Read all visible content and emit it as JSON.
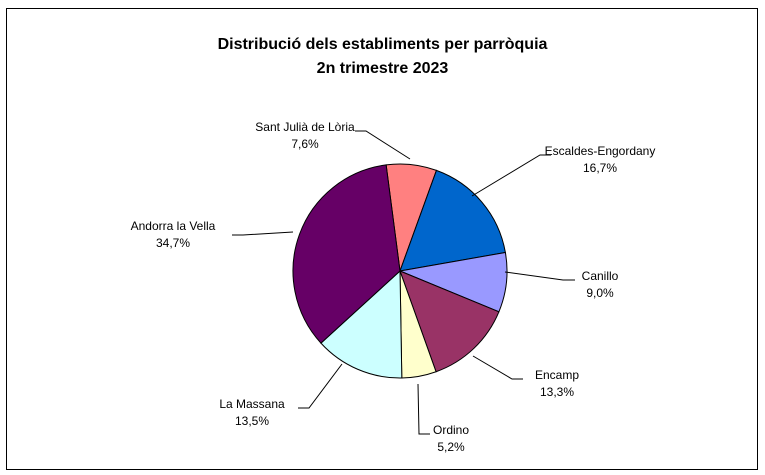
{
  "chart_data": {
    "type": "pie",
    "title": "Distribució dels establiments per parròquia",
    "subtitle": "2n trimestre 2023",
    "slices": [
      {
        "name": "Sant Julià de Lòria",
        "value": 7.6,
        "label": "7,6%",
        "color": "#ff8080"
      },
      {
        "name": "Escaldes-Engordany",
        "value": 16.7,
        "label": "16,7%",
        "color": "#0066cc"
      },
      {
        "name": "Canillo",
        "value": 9.0,
        "label": "9,0%",
        "color": "#9999ff"
      },
      {
        "name": "Encamp",
        "value": 13.3,
        "label": "13,3%",
        "color": "#993366"
      },
      {
        "name": "Ordino",
        "value": 5.2,
        "label": "5,2%",
        "color": "#ffffcc"
      },
      {
        "name": "La Massana",
        "value": 13.5,
        "label": "13,5%",
        "color": "#ccffff"
      },
      {
        "name": "Andorra la Vella",
        "value": 34.7,
        "label": "34,7%",
        "color": "#660066"
      }
    ]
  }
}
